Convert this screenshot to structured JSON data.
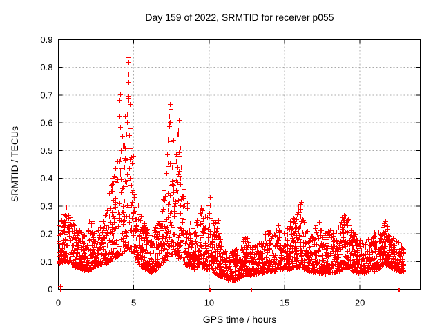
{
  "chart_data": {
    "type": "scatter",
    "title": "Day 159 of 2022, SRMTID for receiver p055",
    "xlabel": "GPS time / hours",
    "ylabel": "SRMTID / TECUs",
    "xlim": [
      0,
      24
    ],
    "ylim": [
      0,
      0.9
    ],
    "xticks": [
      0,
      5,
      10,
      15,
      20
    ],
    "xtick_labels": [
      "0",
      "5",
      "10",
      "15",
      "20"
    ],
    "yticks": [
      0,
      0.1,
      0.2,
      0.3,
      0.4,
      0.5,
      0.6,
      0.7,
      0.8,
      0.9
    ],
    "ytick_labels": [
      "0",
      "0.1",
      "0.2",
      "0.3",
      "0.4",
      "0.5",
      "0.6",
      "0.7",
      "0.8",
      "0.9"
    ],
    "grid": true,
    "legend": "none",
    "marker": {
      "shape": "plus",
      "color": "#ff0000",
      "size": 7
    },
    "style": {
      "background": "#ffffff",
      "border_color": "#000000",
      "grid_color": "#a8a8a8",
      "text_color": "#000000"
    },
    "series": [
      {
        "name": "SRMTID",
        "time_start": 0.0,
        "time_end": 22.9,
        "samples_per_hour": 108,
        "seed": 159,
        "spread_power": 1.7,
        "streak_probability": 0.06,
        "envelope": [
          [
            0.0,
            0.09,
            0.24
          ],
          [
            0.3,
            0.1,
            0.26
          ],
          [
            0.55,
            0.1,
            0.32
          ],
          [
            0.8,
            0.09,
            0.26
          ],
          [
            1.2,
            0.08,
            0.24
          ],
          [
            1.6,
            0.07,
            0.2
          ],
          [
            1.9,
            0.065,
            0.19
          ],
          [
            2.1,
            0.07,
            0.29
          ],
          [
            2.4,
            0.08,
            0.2
          ],
          [
            2.8,
            0.09,
            0.24
          ],
          [
            3.1,
            0.09,
            0.28
          ],
          [
            3.4,
            0.1,
            0.37
          ],
          [
            3.7,
            0.11,
            0.44
          ],
          [
            3.95,
            0.12,
            0.6
          ],
          [
            4.1,
            0.13,
            0.71
          ],
          [
            4.3,
            0.13,
            0.55
          ],
          [
            4.5,
            0.14,
            0.68
          ],
          [
            4.65,
            0.15,
            0.84
          ],
          [
            4.8,
            0.13,
            0.62
          ],
          [
            5.0,
            0.11,
            0.48
          ],
          [
            5.2,
            0.1,
            0.35
          ],
          [
            5.5,
            0.08,
            0.26
          ],
          [
            5.9,
            0.07,
            0.22
          ],
          [
            6.2,
            0.06,
            0.19
          ],
          [
            6.5,
            0.07,
            0.24
          ],
          [
            6.8,
            0.09,
            0.3
          ],
          [
            7.1,
            0.1,
            0.4
          ],
          [
            7.3,
            0.12,
            0.6
          ],
          [
            7.45,
            0.13,
            0.67
          ],
          [
            7.6,
            0.12,
            0.55
          ],
          [
            7.8,
            0.11,
            0.5
          ],
          [
            8.0,
            0.11,
            0.64
          ],
          [
            8.2,
            0.1,
            0.45
          ],
          [
            8.4,
            0.09,
            0.37
          ],
          [
            8.7,
            0.08,
            0.26
          ],
          [
            9.0,
            0.07,
            0.22
          ],
          [
            9.3,
            0.08,
            0.28
          ],
          [
            9.5,
            0.08,
            0.3
          ],
          [
            9.8,
            0.07,
            0.26
          ],
          [
            10.05,
            0.07,
            0.33
          ],
          [
            10.3,
            0.06,
            0.24
          ],
          [
            10.6,
            0.05,
            0.25
          ],
          [
            10.9,
            0.045,
            0.16
          ],
          [
            11.2,
            0.035,
            0.13
          ],
          [
            11.6,
            0.03,
            0.14
          ],
          [
            12.0,
            0.04,
            0.15
          ],
          [
            12.4,
            0.05,
            0.21
          ],
          [
            12.8,
            0.05,
            0.15
          ],
          [
            13.2,
            0.055,
            0.17
          ],
          [
            13.6,
            0.06,
            0.19
          ],
          [
            13.9,
            0.065,
            0.22
          ],
          [
            14.3,
            0.065,
            0.2
          ],
          [
            14.6,
            0.07,
            0.24
          ],
          [
            15.0,
            0.07,
            0.2
          ],
          [
            15.4,
            0.075,
            0.25
          ],
          [
            15.8,
            0.08,
            0.3
          ],
          [
            16.1,
            0.08,
            0.32
          ],
          [
            16.4,
            0.07,
            0.24
          ],
          [
            16.8,
            0.06,
            0.2
          ],
          [
            17.2,
            0.06,
            0.25
          ],
          [
            17.6,
            0.055,
            0.21
          ],
          [
            18.0,
            0.06,
            0.22
          ],
          [
            18.4,
            0.06,
            0.2
          ],
          [
            18.8,
            0.07,
            0.26
          ],
          [
            19.1,
            0.08,
            0.28
          ],
          [
            19.4,
            0.07,
            0.22
          ],
          [
            19.8,
            0.06,
            0.19
          ],
          [
            20.2,
            0.055,
            0.18
          ],
          [
            20.6,
            0.06,
            0.2
          ],
          [
            21.0,
            0.065,
            0.21
          ],
          [
            21.4,
            0.08,
            0.23
          ],
          [
            21.7,
            0.09,
            0.25
          ],
          [
            22.0,
            0.08,
            0.21
          ],
          [
            22.3,
            0.07,
            0.18
          ],
          [
            22.6,
            0.06,
            0.17
          ],
          [
            22.9,
            0.065,
            0.16
          ]
        ],
        "notable_points": [
          [
            0.1,
            0.0
          ],
          [
            0.14,
            0.0
          ],
          [
            0.12,
            0.012
          ],
          [
            4.62,
            0.836
          ],
          [
            4.65,
            0.82
          ],
          [
            4.6,
            0.776
          ],
          [
            4.63,
            0.748
          ],
          [
            4.59,
            0.712
          ],
          [
            4.66,
            0.697
          ],
          [
            4.08,
            0.702
          ],
          [
            4.05,
            0.683
          ],
          [
            7.4,
            0.668
          ],
          [
            7.46,
            0.65
          ],
          [
            7.34,
            0.6
          ],
          [
            8.02,
            0.632
          ],
          [
            8.0,
            0.61
          ],
          [
            10.02,
            0.0
          ],
          [
            10.06,
            0.0
          ],
          [
            10.05,
            0.332
          ],
          [
            12.78,
            0.0
          ],
          [
            12.82,
            0.0
          ],
          [
            16.1,
            0.315
          ],
          [
            19.05,
            0.262
          ],
          [
            21.65,
            0.245
          ],
          [
            22.58,
            0.0
          ],
          [
            22.62,
            0.0
          ]
        ]
      }
    ]
  }
}
